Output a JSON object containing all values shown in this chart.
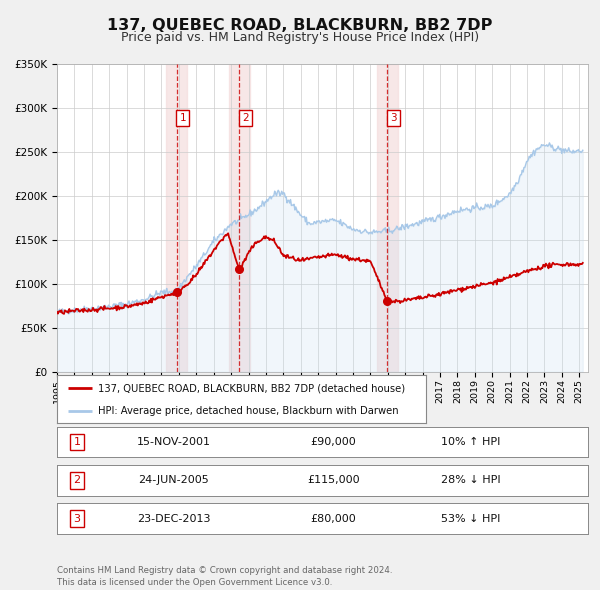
{
  "title": "137, QUEBEC ROAD, BLACKBURN, BB2 7DP",
  "subtitle": "Price paid vs. HM Land Registry's House Price Index (HPI)",
  "title_fontsize": 11.5,
  "subtitle_fontsize": 9,
  "hpi_color": "#a8c8e8",
  "hpi_fill_color": "#c8dff0",
  "price_color": "#cc0000",
  "background_color": "#f0f0f0",
  "plot_bg_color": "#ffffff",
  "grid_color": "#cccccc",
  "sale_span_color": "#f5dddd",
  "ylim": [
    0,
    350000
  ],
  "yticks": [
    0,
    50000,
    100000,
    150000,
    200000,
    250000,
    300000,
    350000
  ],
  "ytick_labels": [
    "£0",
    "£50K",
    "£100K",
    "£150K",
    "£200K",
    "£250K",
    "£300K",
    "£350K"
  ],
  "sales": [
    {
      "num": 1,
      "date_label": "15-NOV-2001",
      "date_x": 2001.88,
      "price": 90000,
      "price_str": "£90,000",
      "pct": "10%",
      "dir": "↑"
    },
    {
      "num": 2,
      "date_label": "24-JUN-2005",
      "date_x": 2005.48,
      "price": 115000,
      "price_str": "£115,000",
      "pct": "28%",
      "dir": "↓"
    },
    {
      "num": 3,
      "date_label": "23-DEC-2013",
      "date_x": 2013.98,
      "price": 80000,
      "price_str": "£80,000",
      "pct": "53%",
      "dir": "↓"
    }
  ],
  "legend_label_price": "137, QUEBEC ROAD, BLACKBURN, BB2 7DP (detached house)",
  "legend_label_hpi": "HPI: Average price, detached house, Blackburn with Darwen",
  "footer": "Contains HM Land Registry data © Crown copyright and database right 2024.\nThis data is licensed under the Open Government Licence v3.0.",
  "xmin": 1995.0,
  "xmax": 2025.5,
  "hpi_anchors": [
    [
      1995.0,
      68000
    ],
    [
      1996.0,
      70000
    ],
    [
      1997.0,
      72000
    ],
    [
      1998.0,
      74000
    ],
    [
      1999.0,
      77000
    ],
    [
      2000.0,
      82000
    ],
    [
      2001.0,
      90000
    ],
    [
      2001.88,
      92000
    ],
    [
      2002.5,
      108000
    ],
    [
      2003.0,
      120000
    ],
    [
      2004.0,
      148000
    ],
    [
      2005.0,
      168000
    ],
    [
      2005.5,
      172000
    ],
    [
      2006.5,
      185000
    ],
    [
      2007.5,
      202000
    ],
    [
      2008.0,
      203000
    ],
    [
      2009.0,
      178000
    ],
    [
      2009.5,
      168000
    ],
    [
      2010.0,
      170000
    ],
    [
      2011.0,
      172000
    ],
    [
      2012.0,
      162000
    ],
    [
      2013.0,
      158000
    ],
    [
      2013.98,
      160000
    ],
    [
      2014.5,
      162000
    ],
    [
      2015.0,
      165000
    ],
    [
      2016.0,
      170000
    ],
    [
      2017.0,
      176000
    ],
    [
      2018.0,
      183000
    ],
    [
      2019.0,
      186000
    ],
    [
      2020.0,
      188000
    ],
    [
      2021.0,
      202000
    ],
    [
      2021.5,
      218000
    ],
    [
      2022.0,
      240000
    ],
    [
      2022.5,
      252000
    ],
    [
      2023.0,
      258000
    ],
    [
      2023.5,
      255000
    ],
    [
      2024.0,
      252000
    ],
    [
      2024.5,
      250000
    ],
    [
      2025.2,
      251000
    ]
  ],
  "price_anchors": [
    [
      1995.0,
      67000
    ],
    [
      1996.0,
      69000
    ],
    [
      1997.0,
      70500
    ],
    [
      1998.0,
      72000
    ],
    [
      1999.0,
      74000
    ],
    [
      2000.0,
      78000
    ],
    [
      2001.0,
      85000
    ],
    [
      2001.88,
      90000
    ],
    [
      2002.5,
      100000
    ],
    [
      2003.0,
      110000
    ],
    [
      2004.0,
      138000
    ],
    [
      2004.8,
      158000
    ],
    [
      2005.48,
      115000
    ],
    [
      2006.0,
      135000
    ],
    [
      2006.5,
      148000
    ],
    [
      2007.0,
      153000
    ],
    [
      2007.5,
      148000
    ],
    [
      2008.0,
      132000
    ],
    [
      2009.0,
      126000
    ],
    [
      2010.0,
      130000
    ],
    [
      2011.0,
      133000
    ],
    [
      2012.0,
      128000
    ],
    [
      2012.5,
      127000
    ],
    [
      2013.0,
      125000
    ],
    [
      2013.98,
      80000
    ],
    [
      2014.5,
      80000
    ],
    [
      2015.0,
      81000
    ],
    [
      2016.0,
      84000
    ],
    [
      2017.0,
      88000
    ],
    [
      2018.0,
      93000
    ],
    [
      2019.0,
      97000
    ],
    [
      2020.0,
      101000
    ],
    [
      2021.0,
      107000
    ],
    [
      2022.0,
      114000
    ],
    [
      2023.0,
      120000
    ],
    [
      2024.0,
      122000
    ],
    [
      2025.2,
      122000
    ]
  ]
}
